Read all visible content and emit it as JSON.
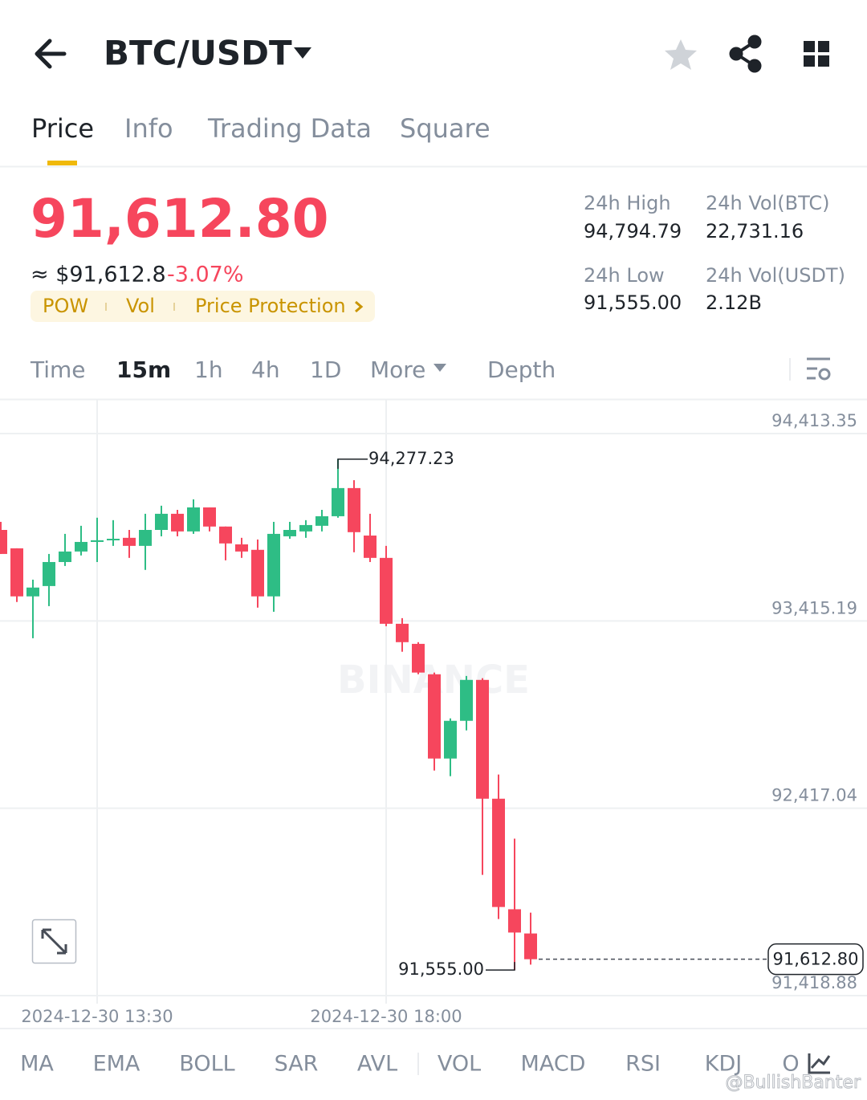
{
  "header": {
    "pair": "BTC/USDT"
  },
  "tabs": [
    "Price",
    "Info",
    "Trading Data",
    "Square"
  ],
  "price": {
    "last": "91,612.80",
    "fiat": "≈ $91,612.8",
    "change": "-3.07%",
    "tags": [
      "POW",
      "Vol",
      "Price Protection"
    ]
  },
  "stats": [
    {
      "label": "24h High",
      "value": "94,794.79"
    },
    {
      "label": "24h Vol(BTC)",
      "value": "22,731.16"
    },
    {
      "label": "24h Low",
      "value": "91,555.00"
    },
    {
      "label": "24h Vol(USDT)",
      "value": "2.12B"
    }
  ],
  "intervals": [
    "Time",
    "15m",
    "1h",
    "4h",
    "1D",
    "More",
    "Depth"
  ],
  "chart_data": {
    "type": "candlestick",
    "categories": [
      null,
      null,
      null,
      null,
      null,
      null,
      "2024-12-30 13:30",
      null,
      null,
      null,
      null,
      null,
      null,
      null,
      null,
      null,
      null,
      null,
      null,
      null,
      null,
      null,
      null,
      null,
      "2024-12-30 18:00",
      null,
      null,
      null,
      null,
      null,
      null,
      null,
      null,
      null
    ],
    "open": [
      93900,
      93802,
      93546,
      93601,
      93729,
      93785,
      93836,
      93845,
      93858,
      93815,
      93900,
      93986,
      93892,
      94020,
      93918,
      93823,
      93794,
      93546,
      93866,
      93892,
      93922,
      93973,
      94123,
      93870,
      93751,
      93400,
      93293,
      93131,
      92682,
      92883,
      93101,
      92468,
      91879,
      91750
    ],
    "high": [
      93943,
      93802,
      93635,
      93772,
      93879,
      93922,
      93965,
      93952,
      93900,
      93986,
      94029,
      94007,
      94063,
      94020,
      93918,
      93858,
      93849,
      93943,
      93943,
      93952,
      94007,
      94277.23,
      94165,
      93986,
      93815,
      93430,
      93302,
      93140,
      92896,
      93122,
      93110,
      92597,
      92255,
      91861
    ],
    "low": [
      93772,
      93516,
      93323,
      93494,
      93708,
      93764,
      93729,
      93815,
      93751,
      93687,
      93866,
      93866,
      93879,
      93892,
      93738,
      93751,
      93486,
      93464,
      93853,
      93858,
      93892,
      93965,
      93781,
      93729,
      93387,
      93251,
      93131,
      92618,
      92588,
      92832,
      92062,
      91827,
      91555.0,
      91584
    ],
    "close": [
      93772,
      93546,
      93593,
      93729,
      93785,
      93836,
      93845,
      93853,
      93815,
      93900,
      93986,
      93892,
      94020,
      93918,
      93828,
      93785,
      93546,
      93879,
      93900,
      93926,
      93973,
      94123,
      93888,
      93751,
      93400,
      93302,
      93140,
      92682,
      92883,
      93101,
      92468,
      91891,
      91755,
      91612.8
    ],
    "up_color": "#2ebd85",
    "down_color": "#f6465d",
    "ylim": [
      91418.88,
      94593
    ],
    "yticks": [
      {
        "value": 94413.35,
        "label": "94,413.35"
      },
      {
        "value": 93415.19,
        "label": "93,415.19"
      },
      {
        "value": 92417.04,
        "label": "92,417.04"
      },
      {
        "value": 91418.88,
        "label": "91,418.88"
      }
    ],
    "grid": true,
    "high_label": {
      "value": 94277.23,
      "label": "94,277.23"
    },
    "low_label": {
      "value": 91555.0,
      "label": "91,555.00"
    },
    "current_label": {
      "value": 91612.8,
      "label": "91,612.80"
    },
    "watermark": "BINANCE"
  },
  "indicators": [
    "MA",
    "EMA",
    "BOLL",
    "SAR",
    "AVL",
    "VOL",
    "MACD",
    "RSI",
    "KDJ",
    "O"
  ],
  "credit": "@BullishBanter"
}
